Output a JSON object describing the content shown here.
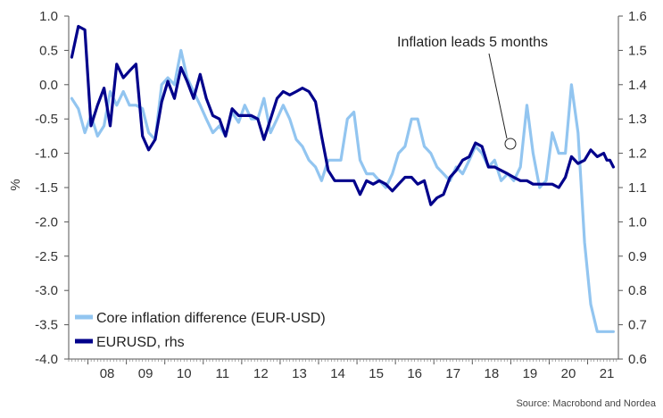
{
  "chart_data": {
    "type": "line",
    "title": "",
    "ylabel": "%",
    "y2label": "",
    "ylim": [
      -4.0,
      1.0
    ],
    "y2lim": [
      0.6,
      1.6
    ],
    "yticks": [
      "1.0",
      "0.5",
      "0.0",
      "-0.5",
      "-1.0",
      "-1.5",
      "-2.0",
      "-2.5",
      "-3.0",
      "-3.5",
      "-4.0"
    ],
    "y2ticks": [
      "1.6",
      "1.5",
      "1.4",
      "1.3",
      "1.2",
      "1.1",
      "1.0",
      "0.9",
      "0.8",
      "0.7",
      "0.6"
    ],
    "xticks": [
      "08",
      "09",
      "10",
      "11",
      "12",
      "13",
      "14",
      "15",
      "16",
      "17",
      "18",
      "19",
      "20",
      "21"
    ],
    "xlim": [
      2007.5,
      2021.8
    ],
    "legend_position": "bottom-left",
    "annotation": {
      "text": "Inflation leads 5 months",
      "x": 2018.9,
      "y": -0.92
    },
    "source": "Source: Macrobond and Nordea",
    "colors": {
      "core_inflation": "#92c5f0",
      "eurusd": "#00008b",
      "axis": "#555555"
    },
    "series": [
      {
        "name": "Core inflation difference (EUR-USD)",
        "axis": "left",
        "x": [
          2007.58,
          2007.75,
          2007.92,
          2008.08,
          2008.25,
          2008.42,
          2008.58,
          2008.75,
          2008.92,
          2009.08,
          2009.25,
          2009.42,
          2009.58,
          2009.75,
          2009.92,
          2010.08,
          2010.25,
          2010.42,
          2010.58,
          2010.75,
          2010.92,
          2011.08,
          2011.25,
          2011.42,
          2011.58,
          2011.75,
          2011.92,
          2012.08,
          2012.25,
          2012.42,
          2012.58,
          2012.75,
          2012.92,
          2013.08,
          2013.25,
          2013.42,
          2013.58,
          2013.75,
          2013.92,
          2014.08,
          2014.25,
          2014.42,
          2014.58,
          2014.75,
          2014.92,
          2015.08,
          2015.25,
          2015.42,
          2015.58,
          2015.75,
          2015.92,
          2016.08,
          2016.25,
          2016.42,
          2016.58,
          2016.75,
          2016.92,
          2017.08,
          2017.25,
          2017.42,
          2017.58,
          2017.75,
          2017.92,
          2018.08,
          2018.25,
          2018.42,
          2018.58,
          2018.75,
          2018.92,
          2019.08,
          2019.25,
          2019.42,
          2019.58,
          2019.75,
          2019.92,
          2020.08,
          2020.25,
          2020.42,
          2020.58,
          2020.75,
          2020.92,
          2021.08,
          2021.25,
          2021.42,
          2021.5,
          2021.58,
          2021.67
        ],
        "values": [
          -0.2,
          -0.35,
          -0.7,
          -0.45,
          -0.75,
          -0.6,
          -0.1,
          -0.3,
          -0.1,
          -0.3,
          -0.3,
          -0.35,
          -0.7,
          -0.8,
          0.0,
          0.1,
          0.0,
          0.5,
          0.1,
          -0.1,
          -0.3,
          -0.5,
          -0.7,
          -0.6,
          -0.75,
          -0.4,
          -0.55,
          -0.3,
          -0.5,
          -0.5,
          -0.2,
          -0.7,
          -0.5,
          -0.3,
          -0.5,
          -0.8,
          -0.9,
          -1.1,
          -1.2,
          -1.4,
          -1.1,
          -1.1,
          -1.1,
          -0.5,
          -0.4,
          -1.1,
          -1.3,
          -1.3,
          -1.4,
          -1.5,
          -1.3,
          -1.0,
          -0.9,
          -0.5,
          -0.5,
          -0.9,
          -1.0,
          -1.2,
          -1.3,
          -1.4,
          -1.2,
          -1.3,
          -1.1,
          -0.9,
          -1.0,
          -1.2,
          -1.1,
          -1.4,
          -1.3,
          -1.4,
          -1.2,
          -0.3,
          -1.0,
          -1.5,
          -1.4,
          -0.7,
          -1.0,
          -1.0,
          0.0,
          -0.7,
          -2.3,
          -3.2,
          -3.6,
          -3.6,
          -3.6,
          -3.6,
          -3.6
        ]
      },
      {
        "name": "EURUSD, rhs",
        "axis": "right",
        "x": [
          2007.58,
          2007.75,
          2007.92,
          2008.08,
          2008.25,
          2008.42,
          2008.58,
          2008.75,
          2008.92,
          2009.08,
          2009.25,
          2009.42,
          2009.58,
          2009.75,
          2009.92,
          2010.08,
          2010.25,
          2010.42,
          2010.58,
          2010.75,
          2010.92,
          2011.08,
          2011.25,
          2011.42,
          2011.58,
          2011.75,
          2011.92,
          2012.08,
          2012.25,
          2012.42,
          2012.58,
          2012.75,
          2012.92,
          2013.08,
          2013.25,
          2013.42,
          2013.58,
          2013.75,
          2013.92,
          2014.08,
          2014.25,
          2014.42,
          2014.58,
          2014.75,
          2014.92,
          2015.08,
          2015.25,
          2015.42,
          2015.58,
          2015.75,
          2015.92,
          2016.08,
          2016.25,
          2016.42,
          2016.58,
          2016.75,
          2016.92,
          2017.08,
          2017.25,
          2017.42,
          2017.58,
          2017.75,
          2017.92,
          2018.08,
          2018.25,
          2018.42,
          2018.58,
          2018.75,
          2018.92,
          2019.08,
          2019.25,
          2019.42,
          2019.58,
          2019.75,
          2019.92,
          2020.08,
          2020.25,
          2020.42,
          2020.58,
          2020.75,
          2020.92,
          2021.08,
          2021.25,
          2021.42,
          2021.5,
          2021.58,
          2021.67
        ],
        "values": [
          1.48,
          1.57,
          1.56,
          1.28,
          1.34,
          1.39,
          1.28,
          1.46,
          1.42,
          1.44,
          1.46,
          1.25,
          1.21,
          1.24,
          1.35,
          1.41,
          1.36,
          1.45,
          1.41,
          1.36,
          1.43,
          1.36,
          1.31,
          1.3,
          1.25,
          1.33,
          1.31,
          1.31,
          1.31,
          1.3,
          1.24,
          1.3,
          1.36,
          1.38,
          1.37,
          1.38,
          1.39,
          1.38,
          1.35,
          1.25,
          1.15,
          1.12,
          1.12,
          1.12,
          1.12,
          1.08,
          1.12,
          1.11,
          1.12,
          1.11,
          1.09,
          1.11,
          1.13,
          1.13,
          1.11,
          1.12,
          1.05,
          1.07,
          1.08,
          1.13,
          1.15,
          1.18,
          1.19,
          1.23,
          1.22,
          1.16,
          1.16,
          1.15,
          1.14,
          1.13,
          1.12,
          1.12,
          1.11,
          1.11,
          1.11,
          1.11,
          1.1,
          1.13,
          1.19,
          1.17,
          1.18,
          1.21,
          1.19,
          1.2,
          1.18,
          1.18,
          1.16
        ]
      }
    ]
  }
}
